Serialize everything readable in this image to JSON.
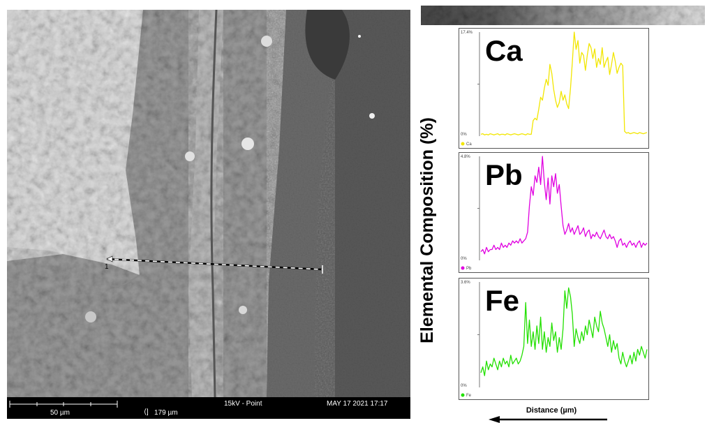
{
  "sem_image": {
    "scale_bar_label": "50 µm",
    "field_width": "179 µm",
    "mode": "15kV - Point",
    "timestamp": "MAY 17 2021 17:17",
    "line_marker": "1"
  },
  "ylabel": "Elemental Composition (%)",
  "xlabel": "Distance (µm)",
  "colors": {
    "Ca": "#f2e600",
    "Pb": "#e000e0",
    "Fe": "#22e000"
  },
  "chart_data": [
    {
      "type": "line",
      "element": "Ca",
      "legend": "Ca",
      "ymax_label": "17.4%",
      "ymin_label": "0%",
      "ylim": [
        0,
        17.4
      ],
      "values": [
        0.3,
        0.4,
        0.2,
        0.3,
        0.2,
        0.4,
        0.3,
        0.2,
        0.3,
        0.4,
        0.2,
        0.3,
        0.3,
        0.2,
        0.4,
        0.3,
        0.2,
        0.3,
        0.4,
        0.3,
        0.2,
        0.3,
        0.4,
        0.3,
        0.2,
        0.4,
        0.3,
        0.3,
        2.6,
        3.0,
        2.7,
        4.5,
        6.5,
        6.0,
        8.0,
        9.5,
        8.5,
        12.0,
        10.5,
        7.8,
        6.0,
        4.8,
        5.6,
        7.5,
        6.0,
        6.9,
        5.4,
        4.6,
        8.0,
        12.3,
        17.4,
        14.5,
        16.0,
        12.2,
        14.0,
        13.5,
        11.0,
        13.5,
        15.5,
        14.8,
        13.0,
        14.6,
        11.5,
        13.0,
        12.0,
        14.8,
        11.5,
        12.5,
        13.2,
        10.3,
        12.0,
        14.0,
        12.5,
        10.5,
        11.5,
        12.2,
        11.8,
        0.8,
        0.5,
        0.6,
        0.4,
        0.5,
        0.6,
        0.5,
        0.4,
        0.6,
        0.5,
        0.4,
        0.5,
        0.6
      ]
    },
    {
      "type": "line",
      "element": "Pb",
      "legend": "Pb",
      "ymax_label": "4.8%",
      "ymin_label": "0%",
      "ylim": [
        0,
        4.8
      ],
      "values": [
        0.4,
        0.5,
        0.3,
        0.6,
        0.4,
        0.5,
        0.5,
        0.7,
        0.5,
        0.6,
        0.5,
        0.8,
        0.6,
        0.7,
        0.6,
        0.8,
        0.7,
        0.9,
        0.8,
        0.9,
        0.8,
        1.0,
        0.8,
        0.9,
        1.0,
        1.3,
        2.5,
        3.4,
        3.0,
        3.9,
        3.6,
        4.3,
        3.5,
        4.8,
        3.6,
        2.8,
        3.8,
        2.6,
        3.9,
        3.4,
        4.0,
        3.1,
        3.5,
        2.5,
        1.6,
        1.2,
        1.4,
        1.7,
        1.3,
        1.5,
        1.2,
        1.4,
        1.6,
        1.2,
        1.3,
        1.5,
        1.1,
        1.3,
        1.4,
        1.0,
        1.2,
        1.1,
        1.3,
        1.1,
        1.0,
        1.2,
        1.4,
        1.1,
        1.0,
        1.2,
        1.0,
        1.1,
        0.9,
        0.6,
        0.9,
        1.0,
        0.7,
        0.8,
        0.6,
        0.8,
        0.9,
        0.7,
        0.8,
        0.6,
        0.8,
        0.9,
        0.6,
        0.8,
        0.7,
        0.8
      ]
    },
    {
      "type": "line",
      "element": "Fe",
      "legend": "Fe",
      "ymax_label": "3.6%",
      "ymin_label": "0%",
      "ylim": [
        0,
        3.6
      ],
      "values": [
        0.5,
        0.7,
        0.4,
        0.9,
        0.6,
        0.8,
        0.7,
        1.0,
        0.8,
        0.6,
        0.9,
        0.7,
        1.0,
        0.8,
        0.9,
        0.7,
        1.1,
        0.8,
        0.9,
        1.0,
        0.8,
        0.9,
        1.1,
        1.4,
        2.9,
        1.5,
        2.3,
        1.4,
        1.9,
        1.3,
        2.1,
        1.5,
        2.4,
        1.3,
        1.9,
        1.2,
        1.7,
        1.4,
        2.2,
        1.6,
        1.9,
        1.2,
        1.7,
        1.3,
        2.0,
        3.3,
        2.7,
        3.4,
        3.1,
        2.5,
        1.4,
        2.0,
        1.7,
        1.5,
        1.9,
        1.6,
        2.1,
        1.8,
        2.3,
        2.0,
        1.7,
        2.4,
        2.1,
        1.9,
        2.6,
        2.2,
        2.0,
        1.7,
        1.4,
        1.8,
        1.2,
        1.6,
        1.3,
        1.5,
        1.0,
        0.8,
        1.2,
        0.9,
        0.7,
        0.9,
        1.1,
        0.8,
        1.2,
        0.9,
        1.3,
        1.1,
        1.4,
        1.2,
        1.0,
        1.3
      ]
    }
  ]
}
